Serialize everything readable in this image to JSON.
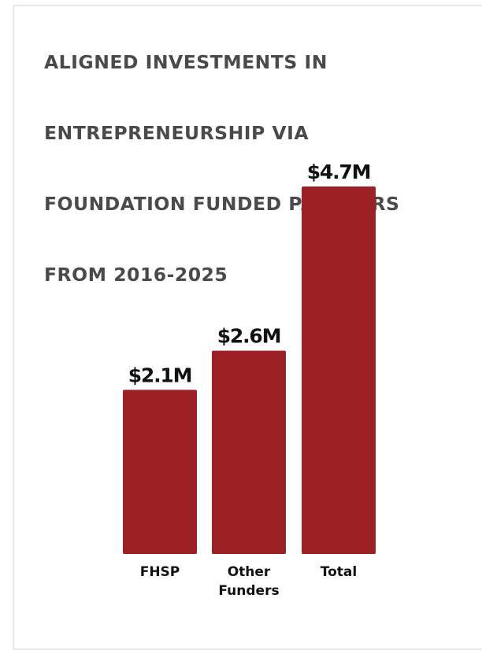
{
  "title_lines": [
    "ALIGNED INVESTMENTS IN",
    "ENTREPRENEURSHIP VIA",
    "FOUNDATION FUNDED PARTNERS",
    "FROM 2016-2025"
  ],
  "chart_data": {
    "type": "bar",
    "title": "ALIGNED INVESTMENTS IN ENTREPRENEURSHIP VIA FOUNDATION FUNDED PARTNERS FROM 2016-2025",
    "categories": [
      [
        "FHSP"
      ],
      [
        "Other",
        "Funders"
      ],
      [
        "Total"
      ]
    ],
    "values": [
      2.1,
      2.6,
      4.7
    ],
    "value_labels": [
      "$2.1M",
      "$2.6M",
      "$4.7M"
    ],
    "unit": "M USD",
    "ylim": [
      0,
      4.7
    ],
    "bar_color": "#9b2126",
    "grid": false,
    "legend": "none"
  }
}
